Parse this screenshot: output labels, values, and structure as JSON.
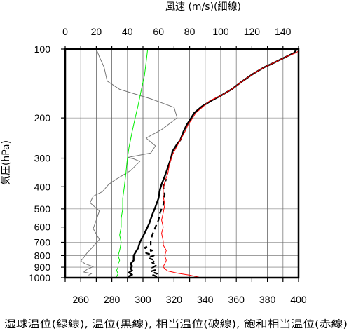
{
  "chart_data": {
    "type": "line",
    "title_top": "風速 (m/s)(細線)",
    "ylabel": "気圧(hPa)",
    "xlabel_bottom": "湿球温位(緑線), 温位(黒線), 相当温位(破線), 飽和相当温位(赤線)",
    "top_axis": {
      "label": "風速 (m/s)(細線)",
      "range": [
        0,
        150
      ],
      "ticks": [
        "0",
        "20",
        "40",
        "60",
        "80",
        "100",
        "120",
        "140"
      ]
    },
    "bottom_axis": {
      "range": [
        250,
        400
      ],
      "ticks": [
        "260",
        "280",
        "300",
        "320",
        "340",
        "360",
        "380",
        "400"
      ]
    },
    "y_axis": {
      "scale": "log",
      "range": [
        1000,
        100
      ],
      "ticks": [
        "100",
        "200",
        "300",
        "400",
        "500",
        "600",
        "700",
        "800",
        "900",
        "1000"
      ]
    },
    "grid": true,
    "colors": {
      "wind": "#777777",
      "wet_bulb": "#00ee00",
      "theta": "#000000",
      "theta_e": "#000000",
      "theta_es": "#ff0000",
      "grid": "#666666"
    },
    "series": [
      {
        "key": "wind",
        "axis": "top",
        "style": "thin",
        "points": [
          [
            15,
            975
          ],
          [
            17,
            960
          ],
          [
            12,
            945
          ],
          [
            14,
            920
          ],
          [
            18,
            895
          ],
          [
            13,
            870
          ],
          [
            10,
            845
          ],
          [
            12,
            815
          ],
          [
            14,
            780
          ],
          [
            18,
            730
          ],
          [
            22,
            680
          ],
          [
            18,
            610
          ],
          [
            20,
            560
          ],
          [
            22,
            510
          ],
          [
            16,
            470
          ],
          [
            18,
            440
          ],
          [
            24,
            420
          ],
          [
            28,
            390
          ],
          [
            33,
            370
          ],
          [
            42,
            340
          ],
          [
            48,
            310
          ],
          [
            44,
            302
          ],
          [
            40,
            298
          ],
          [
            55,
            285
          ],
          [
            58,
            265
          ],
          [
            52,
            245
          ],
          [
            62,
            225
          ],
          [
            72,
            200
          ],
          [
            70,
            180
          ],
          [
            55,
            165
          ],
          [
            35,
            150
          ],
          [
            27,
            138
          ],
          [
            25,
            120
          ],
          [
            22,
            108
          ],
          [
            20,
            100
          ]
        ]
      },
      {
        "key": "wet_bulb",
        "axis": "bottom",
        "style": "thin",
        "points": [
          [
            283,
            990
          ],
          [
            284,
            960
          ],
          [
            283,
            930
          ],
          [
            284,
            900
          ],
          [
            284,
            870
          ],
          [
            285,
            840
          ],
          [
            284,
            800
          ],
          [
            285,
            760
          ],
          [
            286,
            700
          ],
          [
            285,
            650
          ],
          [
            286,
            600
          ],
          [
            286,
            550
          ],
          [
            287,
            500
          ],
          [
            287,
            450
          ],
          [
            288,
            400
          ],
          [
            289,
            350
          ],
          [
            290,
            300
          ],
          [
            291,
            270
          ],
          [
            293,
            230
          ],
          [
            295,
            200
          ],
          [
            297,
            175
          ],
          [
            299,
            150
          ],
          [
            301,
            130
          ],
          [
            302,
            115
          ],
          [
            303,
            100
          ]
        ]
      },
      {
        "key": "theta",
        "axis": "bottom",
        "style": "thick",
        "points": [
          [
            292,
            1000
          ],
          [
            291,
            985
          ],
          [
            293,
            970
          ],
          [
            291,
            950
          ],
          [
            293,
            930
          ],
          [
            292,
            910
          ],
          [
            293,
            890
          ],
          [
            292,
            870
          ],
          [
            294,
            840
          ],
          [
            294,
            800
          ],
          [
            297,
            740
          ],
          [
            298,
            700
          ],
          [
            301,
            640
          ],
          [
            304,
            580
          ],
          [
            306,
            530
          ],
          [
            308,
            490
          ],
          [
            310,
            450
          ],
          [
            311,
            410
          ],
          [
            312,
            390
          ],
          [
            314,
            360
          ],
          [
            316,
            330
          ],
          [
            318,
            300
          ],
          [
            319,
            280
          ],
          [
            322,
            260
          ],
          [
            324,
            250
          ],
          [
            326,
            230
          ],
          [
            328,
            215
          ],
          [
            330,
            205
          ],
          [
            333,
            190
          ],
          [
            338,
            178
          ],
          [
            344,
            168
          ],
          [
            350,
            160
          ],
          [
            357,
            150
          ],
          [
            364,
            138
          ],
          [
            371,
            128
          ],
          [
            378,
            120
          ],
          [
            385,
            114
          ],
          [
            392,
            108
          ],
          [
            397,
            104
          ],
          [
            399,
            100
          ]
        ]
      },
      {
        "key": "theta_e",
        "axis": "bottom",
        "style": "dashed",
        "points": [
          [
            309,
            990
          ],
          [
            306,
            970
          ],
          [
            309,
            960
          ],
          [
            305,
            940
          ],
          [
            308,
            925
          ],
          [
            306,
            905
          ],
          [
            309,
            880
          ],
          [
            306,
            860
          ],
          [
            308,
            840
          ],
          [
            303,
            820
          ],
          [
            307,
            800
          ],
          [
            302,
            780
          ],
          [
            306,
            760
          ],
          [
            301,
            740
          ],
          [
            305,
            720
          ],
          [
            305,
            690
          ],
          [
            306,
            650
          ],
          [
            308,
            600
          ],
          [
            310,
            560
          ],
          [
            311,
            520
          ],
          [
            313,
            480
          ],
          [
            314,
            430
          ],
          [
            313,
            400
          ],
          [
            315,
            370
          ]
        ]
      },
      {
        "key": "theta_es",
        "axis": "bottom",
        "style": "thin",
        "points": [
          [
            336,
            995
          ],
          [
            330,
            975
          ],
          [
            322,
            955
          ],
          [
            316,
            935
          ],
          [
            314,
            915
          ],
          [
            313,
            895
          ],
          [
            314,
            870
          ],
          [
            315,
            840
          ],
          [
            314,
            800
          ],
          [
            315,
            760
          ],
          [
            313,
            720
          ],
          [
            313,
            690
          ],
          [
            312,
            640
          ],
          [
            313,
            600
          ],
          [
            312,
            560
          ],
          [
            313,
            520
          ],
          [
            314,
            480
          ],
          [
            313,
            440
          ],
          [
            313,
            410
          ],
          [
            314,
            380
          ],
          [
            316,
            350
          ],
          [
            317,
            320
          ],
          [
            319,
            290
          ],
          [
            322,
            265
          ],
          [
            324,
            250
          ],
          [
            327,
            230
          ],
          [
            329,
            214
          ],
          [
            331,
            205
          ],
          [
            334,
            190
          ],
          [
            338,
            180
          ],
          [
            343,
            168
          ],
          [
            350,
            160
          ],
          [
            357,
            150
          ],
          [
            364,
            138
          ],
          [
            371,
            128
          ],
          [
            378,
            120
          ],
          [
            385,
            114
          ],
          [
            392,
            108
          ],
          [
            398,
            104
          ],
          [
            400,
            102
          ]
        ]
      }
    ]
  }
}
